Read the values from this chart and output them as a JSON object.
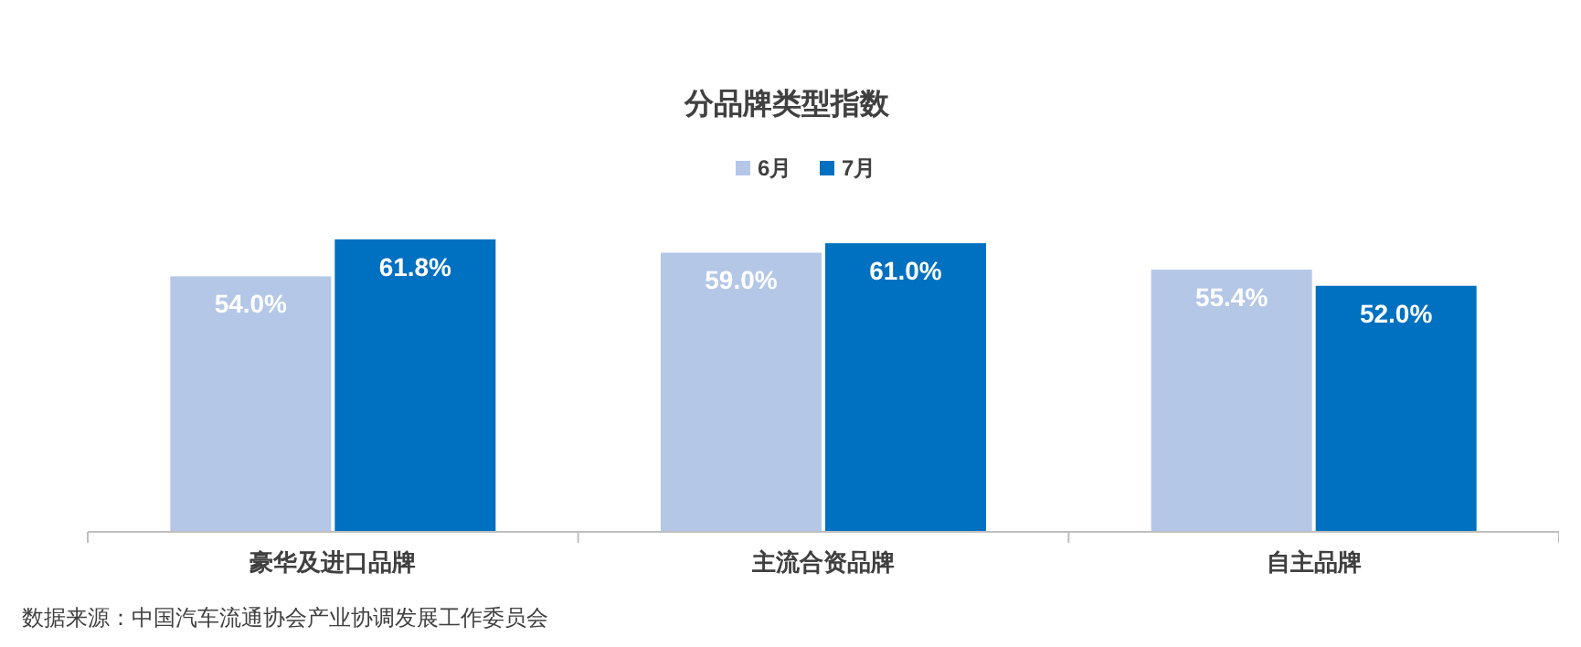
{
  "chart_data": {
    "type": "bar",
    "title": "分品牌类型指数",
    "categories": [
      "豪华及进口品牌",
      "主流合资品牌",
      "自主品牌"
    ],
    "series": [
      {
        "name": "6月",
        "color": "#b4c7e7",
        "values": [
          54.0,
          59.0,
          55.4
        ],
        "value_labels": [
          "54.0%",
          "59.0%",
          "55.4%"
        ]
      },
      {
        "name": "7月",
        "color": "#0070c0",
        "values": [
          61.8,
          61.0,
          52.0
        ],
        "value_labels": [
          "61.8%",
          "61.0%",
          "52.0%"
        ]
      }
    ],
    "legend": "top",
    "annotations": [
      "数据来源：中国汽车流通协会产业协调发展工作委员会"
    ]
  }
}
